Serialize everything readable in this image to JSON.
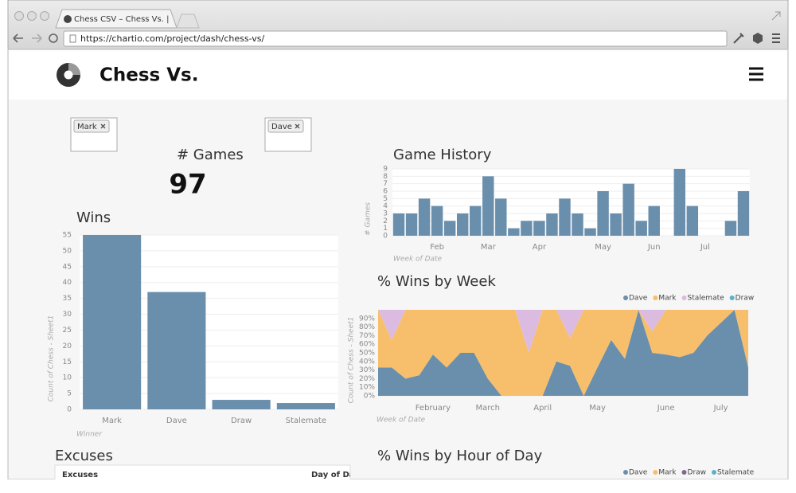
{
  "browser": {
    "tab_title": "Chess CSV – Chess Vs. | Chartio",
    "url": "https://chartio.com/project/dash/chess-vs/"
  },
  "header": {
    "title": "Chess Vs."
  },
  "filters": [
    "Mark",
    "Dave"
  ],
  "games": {
    "label": "# Games",
    "value": 97
  },
  "chart_data": [
    {
      "type": "bar",
      "title": "Wins",
      "x_label": "Winner",
      "y_label": "Count of Chess - Sheet1",
      "categories": [
        "Mark",
        "Dave",
        "Draw",
        "Stalemate"
      ],
      "values": [
        55,
        37,
        3,
        2
      ],
      "color": "#6a8fad",
      "ylim": [
        0,
        55
      ],
      "yticks": [
        0,
        5,
        10,
        15,
        20,
        25,
        30,
        35,
        40,
        45,
        50,
        55
      ],
      "grid": true
    },
    {
      "type": "bar",
      "title": "Game History",
      "x_label": "Week of Date",
      "y_label": "# Games",
      "categories": [
        null,
        null,
        null,
        "Feb",
        null,
        null,
        null,
        "Mar",
        null,
        null,
        null,
        "Apr",
        null,
        null,
        null,
        null,
        "May",
        null,
        null,
        null,
        "Jun",
        null,
        null,
        null,
        "Jul",
        null,
        null,
        null
      ],
      "values": [
        3,
        3,
        5,
        4,
        2,
        3,
        4,
        8,
        5,
        1,
        2,
        2,
        3,
        5,
        3,
        1,
        6,
        3,
        7,
        2,
        4,
        0,
        9,
        4,
        0,
        0,
        2,
        6
      ],
      "color": "#6a8fad",
      "ylim": [
        0,
        9
      ],
      "yticks": [
        0,
        1,
        2,
        3,
        4,
        5,
        6,
        7,
        8,
        9
      ],
      "grid": true
    },
    {
      "type": "stacked_area",
      "title": "% Wins by Week",
      "x_label": "Week of Date",
      "y_label": "Count of Chess - Sheet1",
      "categories": [
        null,
        null,
        null,
        null,
        "February",
        null,
        null,
        null,
        "March",
        null,
        null,
        null,
        "April",
        null,
        null,
        null,
        "May",
        null,
        null,
        null,
        null,
        "June",
        null,
        null,
        null,
        "July",
        null,
        null
      ],
      "series": [
        {
          "name": "Dave",
          "color": "#6a8fad",
          "values": [
            33,
            33,
            20,
            24,
            48,
            33,
            50,
            50,
            20,
            0,
            0,
            0,
            0,
            40,
            35,
            0,
            33,
            65,
            43,
            100,
            50,
            48,
            45,
            50,
            70,
            85,
            100,
            33
          ]
        },
        {
          "name": "Mark",
          "color": "#f7bf6c",
          "values": [
            67,
            32,
            80,
            76,
            52,
            67,
            50,
            50,
            80,
            100,
            100,
            50,
            100,
            60,
            32,
            100,
            67,
            35,
            57,
            0,
            25,
            52,
            55,
            50,
            30,
            15,
            0,
            67
          ]
        },
        {
          "name": "Stalemate",
          "color": "#dcbbe0",
          "values": [
            0,
            35,
            0,
            0,
            0,
            0,
            0,
            0,
            0,
            0,
            0,
            50,
            0,
            0,
            33,
            0,
            0,
            0,
            0,
            0,
            25,
            0,
            0,
            0,
            0,
            0,
            0,
            0
          ]
        },
        {
          "name": "Draw",
          "color": "#5ab4c5",
          "values": [
            0,
            0,
            0,
            0,
            0,
            0,
            0,
            0,
            0,
            0,
            0,
            0,
            0,
            0,
            0,
            0,
            0,
            0,
            0,
            0,
            0,
            0,
            0,
            0,
            0,
            0,
            0,
            0
          ]
        }
      ],
      "ylim": [
        0,
        100
      ],
      "yticks": [
        {
          "value": 0,
          "label": "0%"
        },
        {
          "value": 10,
          "label": "10%"
        },
        {
          "value": 20,
          "label": "20%"
        },
        {
          "value": 30,
          "label": "30%"
        },
        {
          "value": 40,
          "label": "40%"
        },
        {
          "value": 50,
          "label": "50%"
        },
        {
          "value": 60,
          "label": "60%"
        },
        {
          "value": 70,
          "label": "70%"
        },
        {
          "value": 80,
          "label": "80%"
        },
        {
          "value": 90,
          "label": "90%"
        }
      ]
    },
    {
      "type": "legend_only",
      "title": "% Wins by Hour of Day",
      "series": [
        {
          "name": "Dave",
          "color": "#6a8fad"
        },
        {
          "name": "Mark",
          "color": "#f7bf6c"
        },
        {
          "name": "Draw",
          "color": "#7d6b8c"
        },
        {
          "name": "Stalemate",
          "color": "#5ab4c5"
        }
      ]
    }
  ],
  "excuses": {
    "title": "Excuses",
    "columns": [
      "Excuses",
      "Day of Date"
    ]
  }
}
